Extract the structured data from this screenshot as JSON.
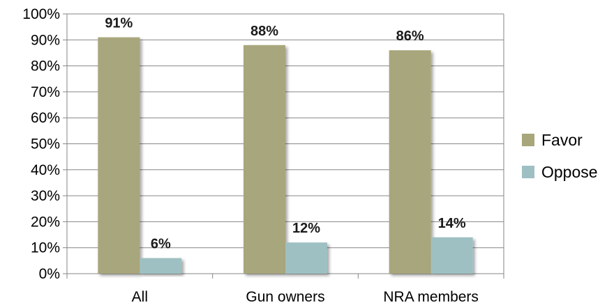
{
  "chart_data": {
    "type": "bar",
    "categories": [
      "All",
      "Gun owners",
      "NRA members"
    ],
    "series": [
      {
        "name": "Favor",
        "values": [
          91,
          88,
          86
        ],
        "labels": [
          "91%",
          "88%",
          "86%"
        ],
        "color": "#a8a67b"
      },
      {
        "name": "Oppose",
        "values": [
          6,
          12,
          14
        ],
        "labels": [
          "6%",
          "12%",
          "14%"
        ],
        "color": "#9ec0c2"
      }
    ],
    "ylim": [
      0,
      100
    ],
    "yticks": [
      "0%",
      "10%",
      "20%",
      "30%",
      "40%",
      "50%",
      "60%",
      "70%",
      "80%",
      "90%",
      "100%"
    ],
    "grid": true,
    "legend_position": "right",
    "title": "",
    "xlabel": "",
    "ylabel": ""
  }
}
